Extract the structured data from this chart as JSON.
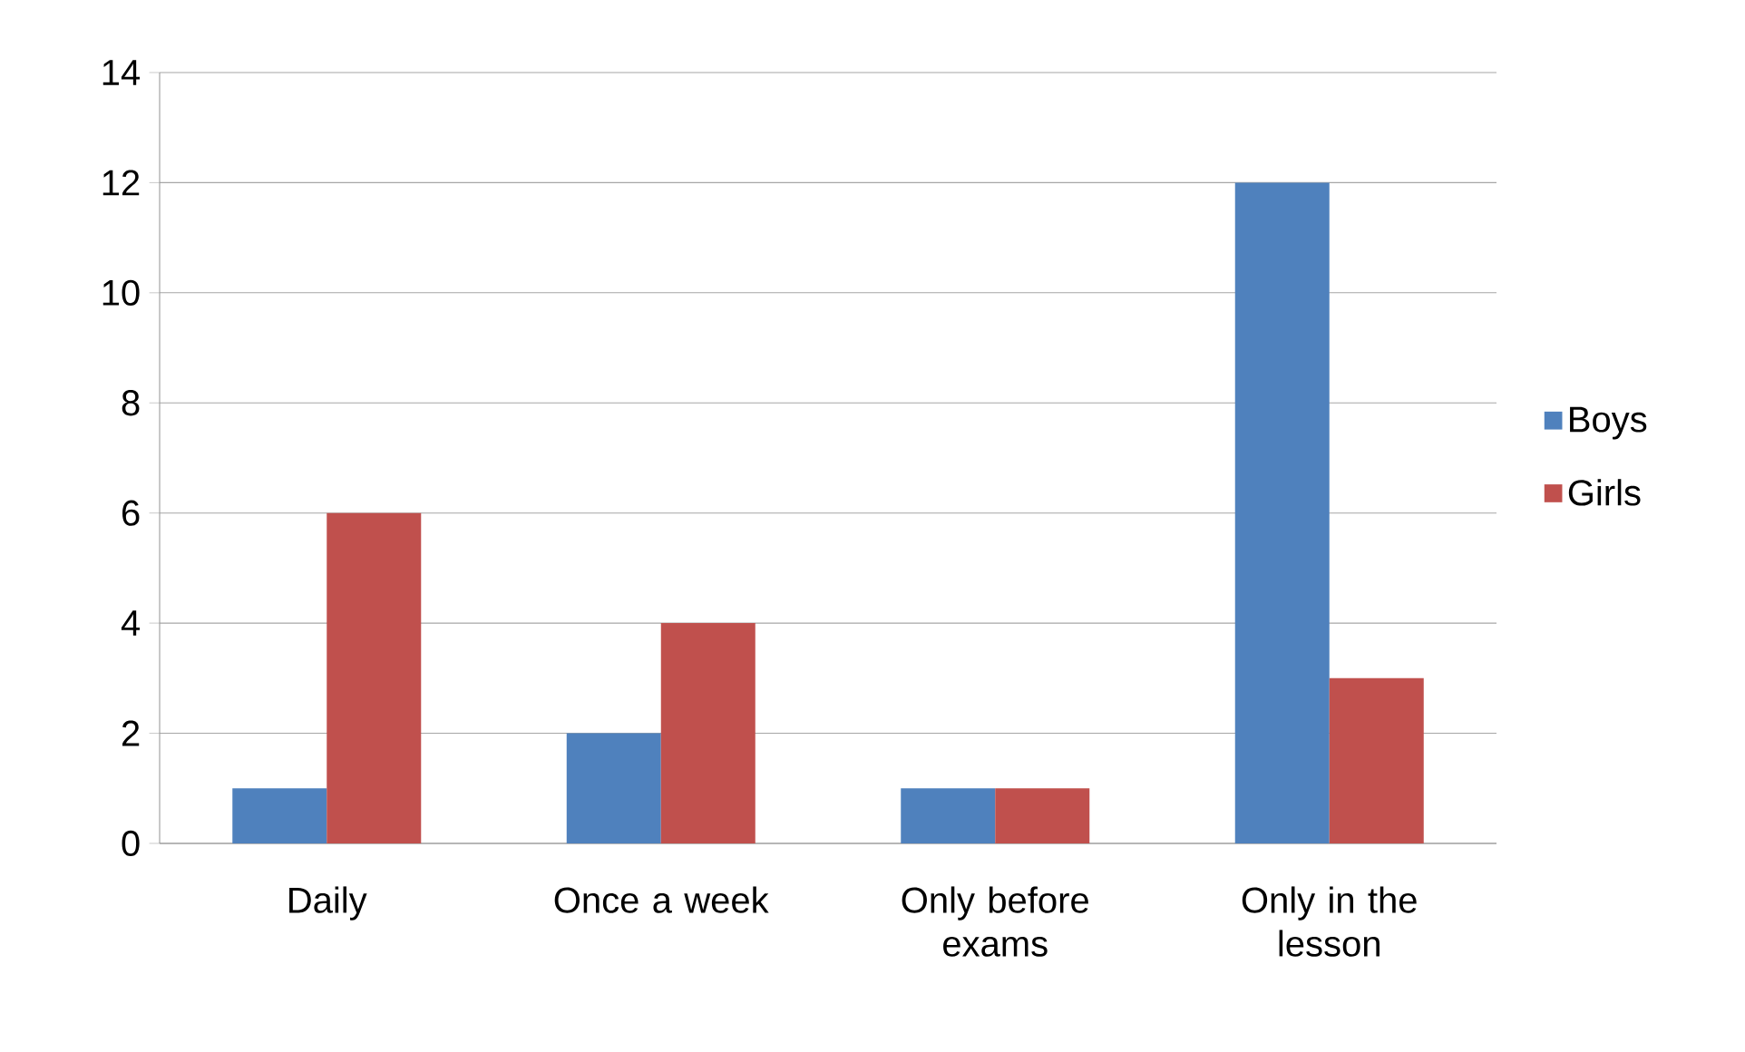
{
  "chart_data": {
    "type": "bar",
    "categories": [
      "Daily",
      "Once a week",
      "Only before exams",
      "Only in the lesson"
    ],
    "series": [
      {
        "name": "Boys",
        "color": "#4f81bd",
        "values": [
          1,
          2,
          1,
          12
        ]
      },
      {
        "name": "Girls",
        "color": "#c0504d",
        "values": [
          6,
          4,
          1,
          3
        ]
      }
    ],
    "ylim": [
      0,
      14
    ],
    "yticks": [
      0,
      2,
      4,
      6,
      8,
      10,
      12,
      14
    ],
    "grid": "y",
    "legend": "right"
  }
}
